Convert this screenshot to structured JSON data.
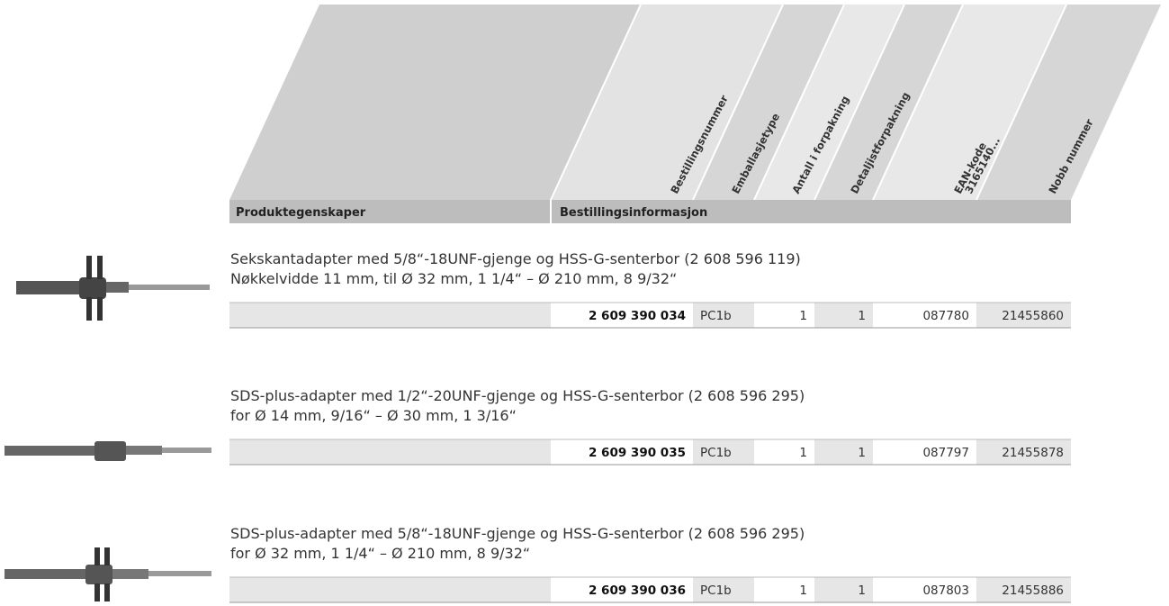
{
  "header": {
    "product_properties": "Produktegenskaper",
    "order_information": "Bestillingsinformasjon",
    "columns": [
      [
        "Bestillingsnummer"
      ],
      [
        "Emballasjetype"
      ],
      [
        "Antall i forpakning"
      ],
      [
        "Detaljistforpakning"
      ],
      [
        "EAN-kode",
        "3165140..."
      ],
      [
        "Nobb nummer"
      ]
    ]
  },
  "products": [
    {
      "description": [
        "Sekskantadapter med 5/8“-18UNF-gjenge og HSS-G-senterbor (2 608 596 119)",
        "Nøkkelvidde 11 mm, til Ø 32 mm, 1 1/4“ – Ø 210 mm, 8 9/32“"
      ],
      "cells": [
        "2 609 390 034",
        "PC1b",
        "1",
        "1",
        "087780",
        "21455860"
      ]
    },
    {
      "description": [
        "SDS-plus-adapter med 1/2“-20UNF-gjenge og HSS-G-senterbor (2 608 596 295)",
        "for Ø 14 mm, 9/16“ – Ø 30 mm, 1 3/16“"
      ],
      "cells": [
        "2 609 390 035",
        "PC1b",
        "1",
        "1",
        "087797",
        "21455878"
      ]
    },
    {
      "description": [
        "SDS-plus-adapter med 5/8“-18UNF-gjenge og HSS-G-senterbor (2 608 596 295)",
        "for Ø 32 mm, 1 1/4“ – Ø 210 mm, 8 9/32“"
      ],
      "cells": [
        "2 609 390 036",
        "PC1b",
        "1",
        "1",
        "087803",
        "21455886"
      ]
    }
  ]
}
